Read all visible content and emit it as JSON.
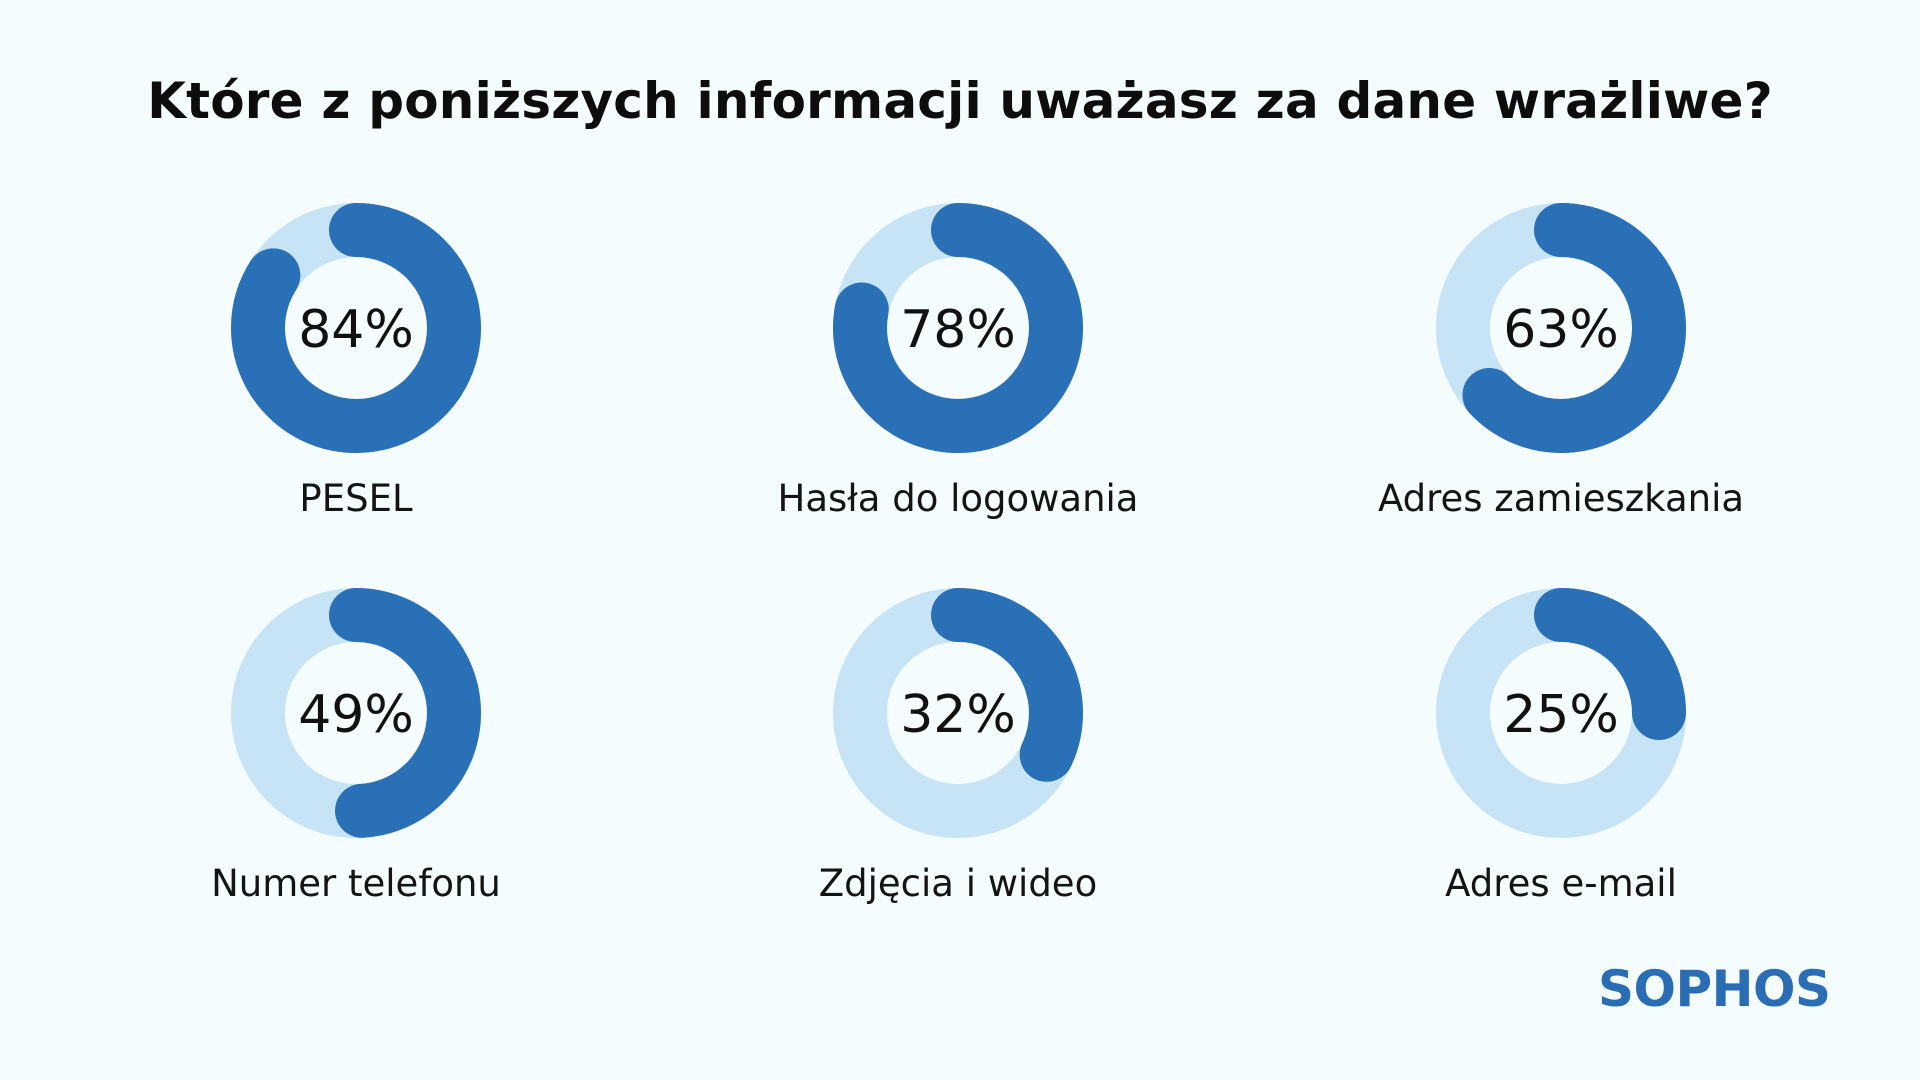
{
  "chart_data": {
    "type": "donut",
    "title": "Które z poniższych informacji uważasz za dane wrażliwe?",
    "unit": "%",
    "categories": [
      "PESEL",
      "Hasła do logowania",
      "Adres zamieszkania",
      "Numer telefonu",
      "Zdjęcia i wideo",
      "Adres e-mail"
    ],
    "values": [
      84,
      78,
      63,
      49,
      32,
      25
    ],
    "labels": [
      "84%",
      "78%",
      "63%",
      "49%",
      "32%",
      "25%"
    ]
  },
  "colors": {
    "background": "#f4fcfd",
    "value_arc": "#2a70b6",
    "track": "#c7e3f6"
  },
  "brand": {
    "logo_text": "SOPHOS"
  }
}
